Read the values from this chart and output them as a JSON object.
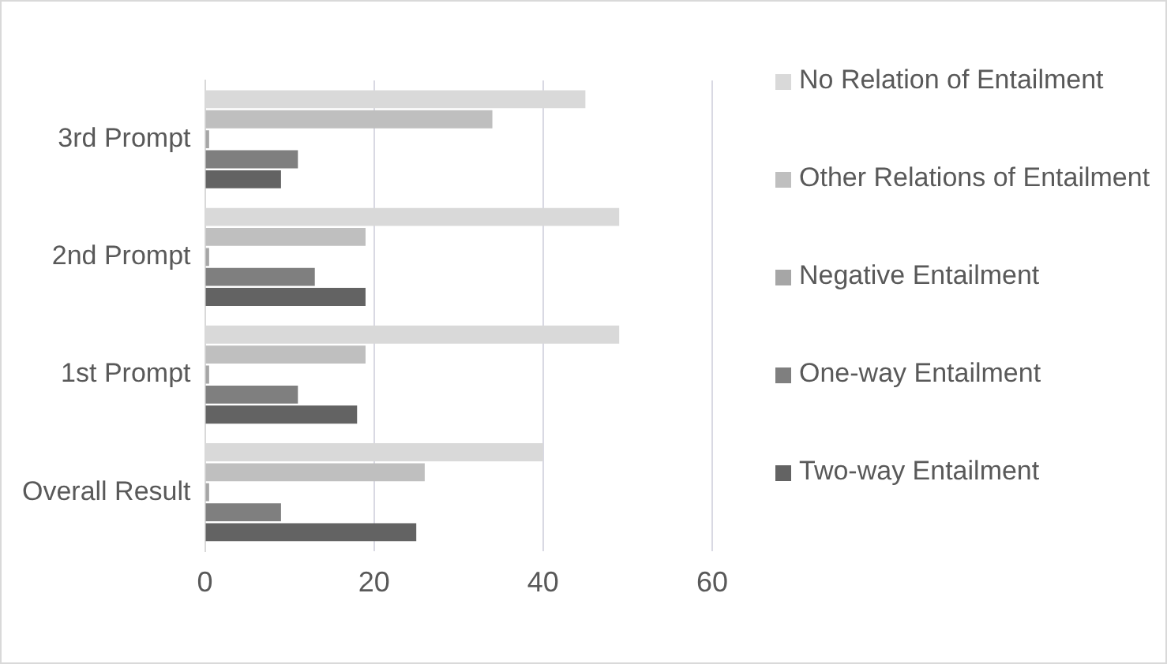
{
  "chart_data": {
    "type": "bar",
    "orientation": "horizontal",
    "categories": [
      "3rd Prompt",
      "2nd Prompt",
      "1st Prompt",
      "Overall Result"
    ],
    "series": [
      {
        "name": "No Relation of Entailment",
        "color": "#d9d9d9",
        "values": [
          45,
          49,
          49,
          40
        ]
      },
      {
        "name": "Other Relations of Entailment",
        "color": "#bfbfbf",
        "values": [
          34,
          19,
          19,
          26
        ]
      },
      {
        "name": "Negative Entailment",
        "color": "#a6a6a6",
        "values": [
          0.5,
          0.5,
          0.5,
          0.5
        ]
      },
      {
        "name": "One-way Entailment",
        "color": "#7f7f7f",
        "values": [
          11,
          13,
          11,
          9
        ]
      },
      {
        "name": "Two-way Entailment",
        "color": "#636363",
        "values": [
          9,
          19,
          18,
          25
        ]
      }
    ],
    "xlim": [
      0,
      60
    ],
    "xticks": [
      0,
      20,
      40,
      60
    ],
    "grid": "x",
    "legend": "right"
  }
}
